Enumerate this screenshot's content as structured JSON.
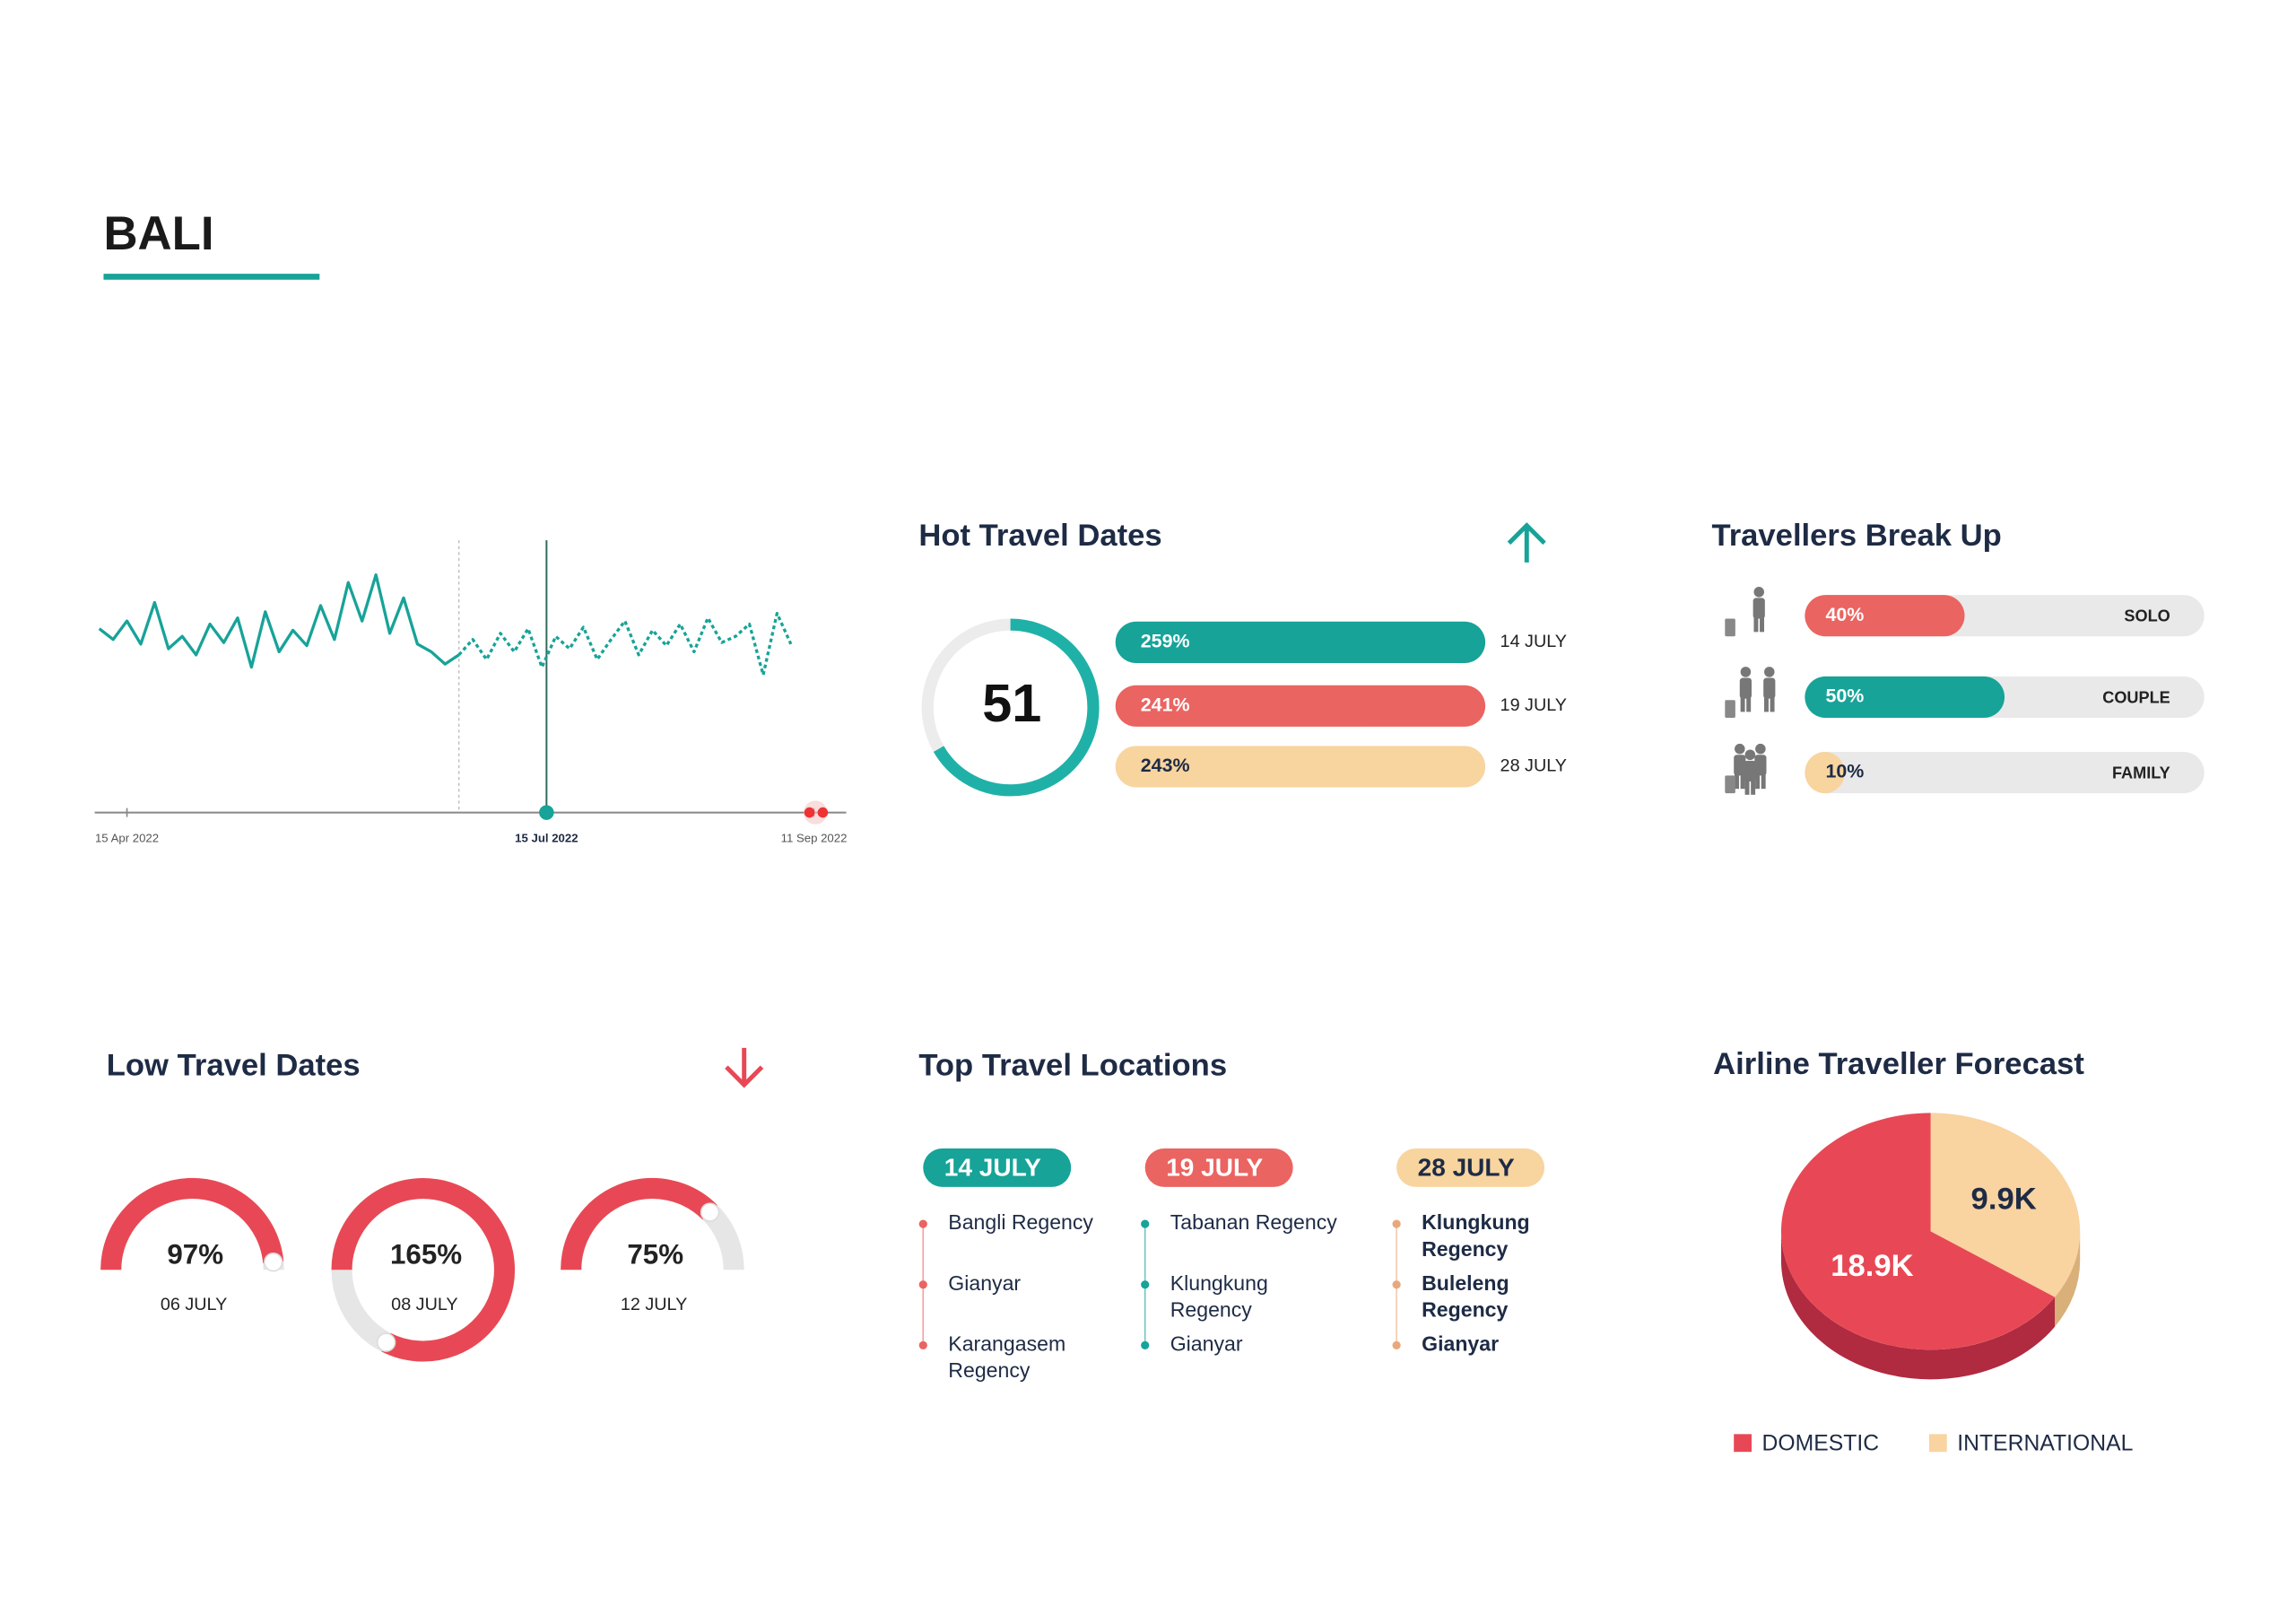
{
  "header": {
    "title": "BALI"
  },
  "chart_data": [
    {
      "type": "line",
      "x": [
        "2022-04-09",
        "2022-04-12",
        "2022-04-15",
        "2022-04-18",
        "2022-04-21",
        "2022-04-24",
        "2022-04-27",
        "2022-04-30",
        "2022-05-03",
        "2022-05-06",
        "2022-05-09",
        "2022-05-12",
        "2022-05-15",
        "2022-05-18",
        "2022-05-21",
        "2022-05-24",
        "2022-05-27",
        "2022-05-30",
        "2022-06-02",
        "2022-06-05",
        "2022-06-08",
        "2022-06-11",
        "2022-06-14",
        "2022-06-17",
        "2022-06-20",
        "2022-06-23",
        "2022-06-26",
        "2022-06-29",
        "2022-07-02",
        "2022-07-05",
        "2022-07-08",
        "2022-07-11",
        "2022-07-14",
        "2022-07-17",
        "2022-07-20",
        "2022-07-23",
        "2022-07-26",
        "2022-07-29",
        "2022-08-01",
        "2022-08-04",
        "2022-08-07",
        "2022-08-10",
        "2022-08-13",
        "2022-08-16",
        "2022-08-19",
        "2022-08-22",
        "2022-08-25",
        "2022-08-28",
        "2022-08-31",
        "2022-09-03",
        "2022-09-06"
      ],
      "xlim": [
        "2022-04-08",
        "2022-09-18"
      ],
      "xticks": [
        {
          "value": "2022-04-15",
          "label": "15 Apr 2022"
        },
        {
          "value": "2022-07-15",
          "label": "15 Jul 2022"
        },
        {
          "value": "2022-09-11",
          "label": "11 Sep 2022"
        }
      ],
      "highlighted_tick": 1,
      "ylim": [
        0,
        100
      ],
      "series": [
        {
          "color": "#17a398",
          "line_style": "solid",
          "values": [
            55,
            48,
            60,
            45,
            72,
            42,
            50,
            38,
            58,
            46,
            62,
            30,
            66,
            40,
            54,
            44,
            70,
            48,
            85,
            60,
            90,
            52,
            75,
            45,
            40,
            32,
            38,
            null,
            null,
            null,
            null,
            null,
            null,
            null,
            null,
            null,
            null,
            null,
            null,
            null,
            null,
            null,
            null,
            null,
            null,
            null,
            null,
            null,
            null,
            null,
            null
          ]
        },
        {
          "color": "#17a398",
          "line_style": "dotted",
          "values": [
            null,
            null,
            null,
            null,
            null,
            null,
            null,
            null,
            null,
            null,
            null,
            null,
            null,
            null,
            null,
            null,
            null,
            null,
            null,
            null,
            null,
            null,
            null,
            null,
            null,
            null,
            38,
            48,
            35,
            52,
            40,
            55,
            30,
            50,
            42,
            56,
            35,
            48,
            60,
            38,
            54,
            44,
            58,
            40,
            62,
            46,
            50,
            58,
            25,
            65,
            45
          ]
        }
      ]
    },
    {
      "type": "pie",
      "title": "Airline Traveller Forecast",
      "categories": [
        "DOMESTIC",
        "INTERNATIONAL"
      ],
      "values": [
        18900,
        9900
      ],
      "value_labels": [
        "18.9K",
        "9.9K"
      ],
      "colors": [
        "#e84855",
        "#f9d3a0"
      ],
      "side_colors": [
        "#b02a40",
        "#d9b07a"
      ]
    }
  ],
  "hot_travel_dates": {
    "title": "Hot Travel Dates",
    "total": 51,
    "items": [
      {
        "value": "259%",
        "date": "14 JULY",
        "color": "#17a398"
      },
      {
        "value": "241%",
        "date": "19 JULY",
        "color": "#ea6461"
      },
      {
        "value": "243%",
        "date": "28 JULY",
        "color": "#f8d49f"
      }
    ]
  },
  "travellers_break_up": {
    "title": "Travellers Break Up",
    "groups": [
      {
        "label": "SOLO",
        "value": 40,
        "value_label": "40%",
        "color": "#ea6461"
      },
      {
        "label": "COUPLE",
        "value": 50,
        "value_label": "50%",
        "color": "#17a398"
      },
      {
        "label": "FAMILY",
        "value": 10,
        "value_label": "10%",
        "color": "#f8d49f"
      }
    ]
  },
  "low_travel_dates": {
    "title": "Low Travel Dates",
    "items": [
      {
        "value": 97,
        "value_label": "97%",
        "date": "06 JULY"
      },
      {
        "value": 165,
        "value_label": "165%",
        "date": "08 JULY"
      },
      {
        "value": 75,
        "value_label": "75%",
        "date": "12 JULY"
      }
    ]
  },
  "top_travel_locations": {
    "title": "Top Travel Locations",
    "columns": [
      {
        "date": "14 JULY",
        "pill_color": "#17a398",
        "bullet_color": "#ea6461",
        "locations": [
          "Bangli Regency",
          "Gianyar",
          "Karangasem Regency"
        ]
      },
      {
        "date": "19 JULY",
        "pill_color": "#ea6461",
        "bullet_color": "#17a398",
        "locations": [
          "Tabanan Regency",
          "Klungkung Regency",
          "Gianyar"
        ]
      },
      {
        "date": "28 JULY",
        "pill_color": "#f8d49f",
        "bullet_color": "#e8a87c",
        "locations": [
          "Klungkung Regency",
          "Buleleng Regency",
          "Gianyar"
        ]
      }
    ]
  }
}
